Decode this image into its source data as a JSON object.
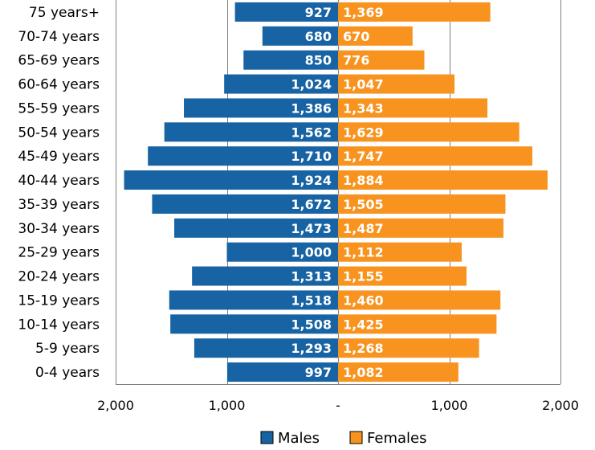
{
  "chart_data": {
    "type": "bar",
    "orientation": "horizontal-diverging",
    "categories": [
      "75 years+",
      "70-74 years",
      "65-69 years",
      "60-64 years",
      "55-59 years",
      "50-54 years",
      "45-49 years",
      "40-44 years",
      "35-39 years",
      "30-34 years",
      "25-29 years",
      "20-24 years",
      "15-19 years",
      "10-14 years",
      "5-9 years",
      "0-4 years"
    ],
    "series": [
      {
        "name": "Males",
        "color": "#1763A3",
        "values": [
          927,
          680,
          850,
          1024,
          1386,
          1562,
          1710,
          1924,
          1672,
          1473,
          1000,
          1313,
          1518,
          1508,
          1293,
          997
        ],
        "labels": [
          "927",
          "680",
          "850",
          "1,024",
          "1,386",
          "1,562",
          "1,710",
          "1,924",
          "1,672",
          "1,473",
          "1,000",
          "1,313",
          "1,518",
          "1,508",
          "1,293",
          "997"
        ]
      },
      {
        "name": "Females",
        "color": "#F7931E",
        "values": [
          1369,
          670,
          776,
          1047,
          1343,
          1629,
          1747,
          1884,
          1505,
          1487,
          1112,
          1155,
          1460,
          1425,
          1268,
          1082
        ],
        "labels": [
          "1,369",
          "670",
          "776",
          "1,047",
          "1,343",
          "1,629",
          "1,747",
          "1,884",
          "1,505",
          "1,487",
          "1,112",
          "1,155",
          "1,460",
          "1,425",
          "1,268",
          "1,082"
        ]
      }
    ],
    "xlim": [
      -2000,
      2000
    ],
    "xticks": [
      -2000,
      -1000,
      0,
      1000,
      2000
    ],
    "xtick_labels": [
      "2,000",
      "1,000",
      "-",
      "1,000",
      "2,000"
    ],
    "grid": "vertical",
    "legend": "bottom"
  }
}
